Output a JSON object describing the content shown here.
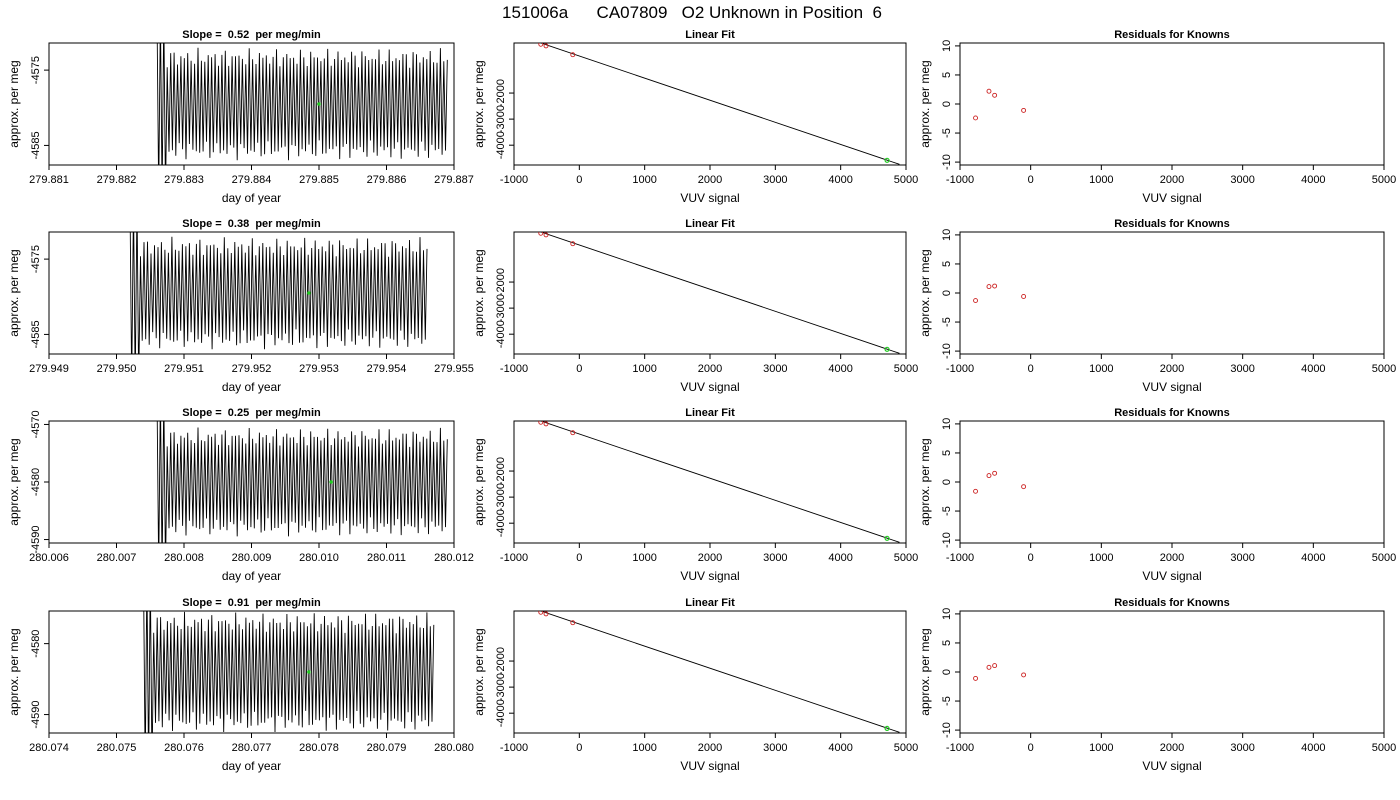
{
  "page_title": "151006a      CA07809   O2 Unknown in Position  6",
  "colors": {
    "trace": "#000000",
    "known_points": "#cc2222",
    "unknown_point": "#22cc22",
    "fit_line": "#000000"
  },
  "chart_data": [
    {
      "type": "line",
      "title": "Slope =  0.52  per meg/min",
      "xlabel": "day of year",
      "ylabel": "approx. per meg",
      "xlim": [
        279.881,
        279.887
      ],
      "ylim": [
        -4587.6,
        -4571.4
      ],
      "x_ticks": [
        279.881,
        279.882,
        279.883,
        279.884,
        279.885,
        279.886,
        279.887
      ],
      "x_tick_labels": [
        "279.881",
        "279.882",
        "279.883",
        "279.884",
        "279.885",
        "279.886",
        "279.887"
      ],
      "y_ticks": [
        -4575,
        -4585
      ],
      "y_tick_labels": [
        "-4575",
        "-4585"
      ],
      "trace": {
        "x_start": 279.8826,
        "x_end": 279.8869,
        "center": -4579.5,
        "amplitude": 7.5,
        "cycles": 85
      },
      "unknown_point": {
        "x": 279.885,
        "y": -4579.5
      }
    },
    {
      "type": "scatter",
      "title": "Linear Fit",
      "xlabel": "VUV signal",
      "ylabel": "approx. per meg",
      "xlim": [
        -1000,
        5000
      ],
      "ylim": [
        -4760,
        -80
      ],
      "x_ticks": [
        -1000,
        0,
        1000,
        2000,
        3000,
        4000,
        5000
      ],
      "x_tick_labels": [
        "-1000",
        "0",
        "1000",
        "2000",
        "3000",
        "4000",
        "5000"
      ],
      "y_ticks": [
        -2000,
        -3000,
        -4000
      ],
      "y_tick_labels": [
        "-2000",
        "-3000",
        "-4000"
      ],
      "fit_line": [
        [
          -800,
          100
        ],
        [
          4900,
          -4735
        ]
      ],
      "known_points": [
        [
          -780,
          35
        ],
        [
          -590,
          -130
        ],
        [
          -510,
          -190
        ],
        [
          -100,
          -530
        ]
      ],
      "unknown_point": [
        4710,
        -4579.5
      ]
    },
    {
      "type": "scatter",
      "title": "Residuals for Knowns",
      "xlabel": "VUV signal",
      "ylabel": "approx. per meg",
      "xlim": [
        -1000,
        5000
      ],
      "ylim": [
        -10.5,
        10.5
      ],
      "x_ticks": [
        -1000,
        0,
        1000,
        2000,
        3000,
        4000,
        5000
      ],
      "x_tick_labels": [
        "-1000",
        "0",
        "1000",
        "2000",
        "3000",
        "4000",
        "5000"
      ],
      "y_ticks": [
        -10,
        -5,
        0,
        5,
        10
      ],
      "y_tick_labels": [
        "-10",
        "-5",
        "0",
        "5",
        "10"
      ],
      "points": [
        [
          -780,
          -2.4
        ],
        [
          -590,
          2.2
        ],
        [
          -510,
          1.5
        ],
        [
          -100,
          -1.1
        ]
      ]
    },
    {
      "type": "line",
      "title": "Slope =  0.38  per meg/min",
      "xlabel": "day of year",
      "ylabel": "approx. per meg",
      "xlim": [
        279.949,
        279.955
      ],
      "ylim": [
        -4587.6,
        -4571.4
      ],
      "x_ticks": [
        279.949,
        279.95,
        279.951,
        279.952,
        279.953,
        279.954,
        279.955
      ],
      "x_tick_labels": [
        "279.949",
        "279.950",
        "279.951",
        "279.952",
        "279.953",
        "279.954",
        "279.955"
      ],
      "y_ticks": [
        -4575,
        -4585
      ],
      "y_tick_labels": [
        "-4575",
        "-4585"
      ],
      "trace": {
        "x_start": 279.9502,
        "x_end": 279.9546,
        "center": -4579.5,
        "amplitude": 7.5,
        "cycles": 85
      },
      "unknown_point": {
        "x": 279.95285,
        "y": -4579.5
      }
    },
    {
      "type": "scatter",
      "title": "Linear Fit",
      "xlabel": "VUV signal",
      "ylabel": "approx. per meg",
      "xlim": [
        -1000,
        5000
      ],
      "ylim": [
        -4760,
        -80
      ],
      "x_ticks": [
        -1000,
        0,
        1000,
        2000,
        3000,
        4000,
        5000
      ],
      "x_tick_labels": [
        "-1000",
        "0",
        "1000",
        "2000",
        "3000",
        "4000",
        "5000"
      ],
      "y_ticks": [
        -2000,
        -3000,
        -4000
      ],
      "y_tick_labels": [
        "-2000",
        "-3000",
        "-4000"
      ],
      "fit_line": [
        [
          -800,
          100
        ],
        [
          4900,
          -4735
        ]
      ],
      "known_points": [
        [
          -780,
          35
        ],
        [
          -590,
          -130
        ],
        [
          -510,
          -190
        ],
        [
          -100,
          -530
        ]
      ],
      "unknown_point": [
        4710,
        -4579.5
      ]
    },
    {
      "type": "scatter",
      "title": "Residuals for Knowns",
      "xlabel": "VUV signal",
      "ylabel": "approx. per meg",
      "xlim": [
        -1000,
        5000
      ],
      "ylim": [
        -10.5,
        10.5
      ],
      "x_ticks": [
        -1000,
        0,
        1000,
        2000,
        3000,
        4000,
        5000
      ],
      "x_tick_labels": [
        "-1000",
        "0",
        "1000",
        "2000",
        "3000",
        "4000",
        "5000"
      ],
      "y_ticks": [
        -10,
        -5,
        0,
        5,
        10
      ],
      "y_tick_labels": [
        "-10",
        "-5",
        "0",
        "5",
        "10"
      ],
      "points": [
        [
          -780,
          -1.3
        ],
        [
          -590,
          1.1
        ],
        [
          -510,
          1.2
        ],
        [
          -100,
          -0.6
        ]
      ]
    },
    {
      "type": "line",
      "title": "Slope =  0.25  per meg/min",
      "xlabel": "day of year",
      "ylabel": "approx. per meg",
      "xlim": [
        280.006,
        280.012
      ],
      "ylim": [
        -4590.6,
        -4569.4
      ],
      "x_ticks": [
        280.006,
        280.007,
        280.008,
        280.009,
        280.01,
        280.011,
        280.012
      ],
      "x_tick_labels": [
        "280.006",
        "280.007",
        "280.008",
        "280.009",
        "280.010",
        "280.011",
        "280.012"
      ],
      "y_ticks": [
        -4570,
        -4580,
        -4590
      ],
      "y_tick_labels": [
        "-4570",
        "-4580",
        "-4590"
      ],
      "trace": {
        "x_start": 280.0076,
        "x_end": 280.0119,
        "center": -4580,
        "amplitude": 9.5,
        "cycles": 85
      },
      "unknown_point": {
        "x": 280.01018,
        "y": -4580
      }
    },
    {
      "type": "scatter",
      "title": "Linear Fit",
      "xlabel": "VUV signal",
      "ylabel": "approx. per meg",
      "xlim": [
        -1000,
        5000
      ],
      "ylim": [
        -4760,
        -80
      ],
      "x_ticks": [
        -1000,
        0,
        1000,
        2000,
        3000,
        4000,
        5000
      ],
      "x_tick_labels": [
        "-1000",
        "0",
        "1000",
        "2000",
        "3000",
        "4000",
        "5000"
      ],
      "y_ticks": [
        -2000,
        -3000,
        -4000
      ],
      "y_tick_labels": [
        "-2000",
        "-3000",
        "-4000"
      ],
      "fit_line": [
        [
          -800,
          100
        ],
        [
          4900,
          -4735
        ]
      ],
      "known_points": [
        [
          -780,
          35
        ],
        [
          -590,
          -130
        ],
        [
          -510,
          -190
        ],
        [
          -100,
          -530
        ]
      ],
      "unknown_point": [
        4710,
        -4580
      ]
    },
    {
      "type": "scatter",
      "title": "Residuals for Knowns",
      "xlabel": "VUV signal",
      "ylabel": "approx. per meg",
      "xlim": [
        -1000,
        5000
      ],
      "ylim": [
        -10.5,
        10.5
      ],
      "x_ticks": [
        -1000,
        0,
        1000,
        2000,
        3000,
        4000,
        5000
      ],
      "x_tick_labels": [
        "-1000",
        "0",
        "1000",
        "2000",
        "3000",
        "4000",
        "5000"
      ],
      "y_ticks": [
        -10,
        -5,
        0,
        5,
        10
      ],
      "y_tick_labels": [
        "-10",
        "-5",
        "0",
        "5",
        "10"
      ],
      "points": [
        [
          -780,
          -1.6
        ],
        [
          -590,
          1.1
        ],
        [
          -510,
          1.5
        ],
        [
          -100,
          -0.8
        ]
      ]
    },
    {
      "type": "line",
      "title": "Slope =  0.91  per meg/min",
      "xlabel": "day of year",
      "ylabel": "approx. per meg",
      "xlim": [
        280.074,
        280.08
      ],
      "ylim": [
        -4592.6,
        -4575.4
      ],
      "x_ticks": [
        280.074,
        280.075,
        280.076,
        280.077,
        280.078,
        280.079,
        280.08
      ],
      "x_tick_labels": [
        "280.074",
        "280.075",
        "280.076",
        "280.077",
        "280.078",
        "280.079",
        "280.080"
      ],
      "y_ticks": [
        -4580,
        -4590
      ],
      "y_tick_labels": [
        "-4580",
        "-4590"
      ],
      "trace": {
        "x_start": 280.0754,
        "x_end": 280.0797,
        "center": -4584,
        "amplitude": 8.5,
        "cycles": 85
      },
      "unknown_point": {
        "x": 280.07785,
        "y": -4584
      }
    },
    {
      "type": "scatter",
      "title": "Linear Fit",
      "xlabel": "VUV signal",
      "ylabel": "approx. per meg",
      "xlim": [
        -1000,
        5000
      ],
      "ylim": [
        -4760,
        -80
      ],
      "x_ticks": [
        -1000,
        0,
        1000,
        2000,
        3000,
        4000,
        5000
      ],
      "x_tick_labels": [
        "-1000",
        "0",
        "1000",
        "2000",
        "3000",
        "4000",
        "5000"
      ],
      "y_ticks": [
        -2000,
        -3000,
        -4000
      ],
      "y_tick_labels": [
        "-2000",
        "-3000",
        "-4000"
      ],
      "fit_line": [
        [
          -800,
          100
        ],
        [
          4900,
          -4735
        ]
      ],
      "known_points": [
        [
          -780,
          35
        ],
        [
          -590,
          -130
        ],
        [
          -510,
          -190
        ],
        [
          -100,
          -530
        ]
      ],
      "unknown_point": [
        4710,
        -4584
      ]
    },
    {
      "type": "scatter",
      "title": "Residuals for Knowns",
      "xlabel": "VUV signal",
      "ylabel": "approx. per meg",
      "xlim": [
        -1000,
        5000
      ],
      "ylim": [
        -10.5,
        10.5
      ],
      "x_ticks": [
        -1000,
        0,
        1000,
        2000,
        3000,
        4000,
        5000
      ],
      "x_tick_labels": [
        "-1000",
        "0",
        "1000",
        "2000",
        "3000",
        "4000",
        "5000"
      ],
      "y_ticks": [
        -10,
        -5,
        0,
        5,
        10
      ],
      "y_tick_labels": [
        "-10",
        "-5",
        "0",
        "5",
        "10"
      ],
      "points": [
        [
          -780,
          -1.1
        ],
        [
          -590,
          0.8
        ],
        [
          -510,
          1.1
        ],
        [
          -100,
          -0.5
        ]
      ]
    }
  ]
}
